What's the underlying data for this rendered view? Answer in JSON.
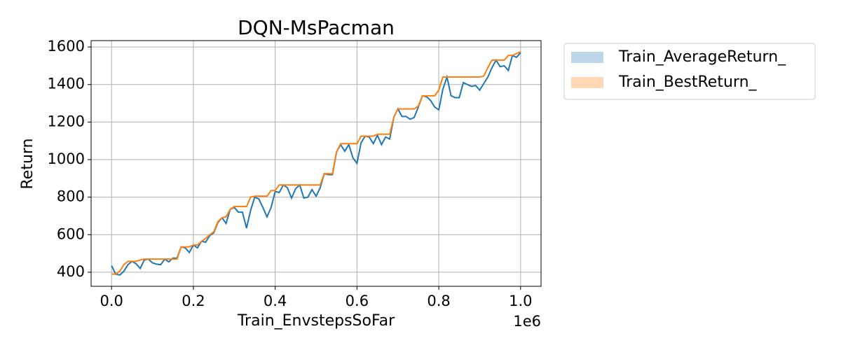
{
  "chart_data": {
    "type": "line",
    "title": "DQN-MsPacman",
    "x_label": "Train_EnvstepsSoFar",
    "y_label": "Return",
    "x_offset_label": "1e6",
    "x": [
      0,
      10000,
      20000,
      30000,
      40000,
      50000,
      60000,
      70000,
      80000,
      90000,
      100000,
      110000,
      120000,
      130000,
      140000,
      150000,
      160000,
      170000,
      180000,
      190000,
      200000,
      210000,
      220000,
      230000,
      240000,
      250000,
      260000,
      270000,
      280000,
      290000,
      300000,
      310000,
      320000,
      330000,
      340000,
      350000,
      360000,
      370000,
      380000,
      390000,
      400000,
      410000,
      420000,
      430000,
      440000,
      450000,
      460000,
      470000,
      480000,
      490000,
      500000,
      510000,
      520000,
      530000,
      540000,
      550000,
      560000,
      570000,
      580000,
      590000,
      600000,
      610000,
      620000,
      630000,
      640000,
      650000,
      660000,
      670000,
      680000,
      690000,
      700000,
      710000,
      720000,
      730000,
      740000,
      750000,
      760000,
      770000,
      780000,
      790000,
      800000,
      810000,
      820000,
      830000,
      840000,
      850000,
      860000,
      870000,
      880000,
      890000,
      900000,
      910000,
      920000,
      930000,
      940000,
      950000,
      960000,
      970000,
      980000,
      990000,
      1000000
    ],
    "series": [
      {
        "name": "Train_AverageReturn_",
        "color": "#1f77b4",
        "values": [
          435,
          390,
          385,
          405,
          440,
          458,
          445,
          420,
          465,
          470,
          450,
          443,
          440,
          470,
          455,
          475,
          475,
          535,
          530,
          505,
          545,
          530,
          565,
          560,
          595,
          610,
          665,
          690,
          660,
          735,
          745,
          720,
          720,
          635,
          730,
          800,
          790,
          745,
          695,
          745,
          830,
          825,
          865,
          850,
          795,
          845,
          865,
          795,
          800,
          840,
          805,
          850,
          925,
          920,
          920,
          1040,
          1080,
          1045,
          1080,
          1010,
          980,
          1090,
          1125,
          1120,
          1085,
          1130,
          1080,
          1120,
          1110,
          1225,
          1270,
          1230,
          1230,
          1215,
          1225,
          1280,
          1340,
          1335,
          1315,
          1280,
          1265,
          1375,
          1440,
          1340,
          1330,
          1330,
          1410,
          1400,
          1390,
          1395,
          1370,
          1405,
          1440,
          1490,
          1530,
          1495,
          1500,
          1475,
          1555,
          1545,
          1570
        ]
      },
      {
        "name": "Train_BestReturn_",
        "color": "#ff7f0e",
        "values": [
          390,
          390,
          405,
          440,
          458,
          458,
          458,
          465,
          470,
          470,
          470,
          470,
          470,
          470,
          470,
          470,
          470,
          535,
          535,
          535,
          545,
          545,
          565,
          580,
          600,
          615,
          670,
          690,
          695,
          735,
          750,
          750,
          750,
          750,
          800,
          805,
          805,
          805,
          805,
          835,
          835,
          865,
          865,
          865,
          865,
          865,
          865,
          865,
          865,
          865,
          865,
          865,
          925,
          925,
          925,
          1040,
          1085,
          1085,
          1085,
          1085,
          1085,
          1125,
          1125,
          1125,
          1125,
          1135,
          1135,
          1135,
          1135,
          1225,
          1270,
          1270,
          1270,
          1270,
          1270,
          1285,
          1340,
          1340,
          1340,
          1340,
          1370,
          1440,
          1440,
          1440,
          1440,
          1440,
          1440,
          1440,
          1440,
          1440,
          1440,
          1445,
          1490,
          1530,
          1530,
          1530,
          1530,
          1555,
          1555,
          1565,
          1575
        ]
      }
    ],
    "xlim": [
      -50000,
      1050000
    ],
    "ylim": [
      325,
      1634
    ],
    "xticks": [
      {
        "value": 0,
        "label": "0.0"
      },
      {
        "value": 200000,
        "label": "0.2"
      },
      {
        "value": 400000,
        "label": "0.4"
      },
      {
        "value": 600000,
        "label": "0.6"
      },
      {
        "value": 800000,
        "label": "0.8"
      },
      {
        "value": 1000000,
        "label": "1.0"
      }
    ],
    "yticks": [
      400,
      600,
      800,
      1000,
      1200,
      1400,
      1600
    ],
    "grid": true,
    "legend": "outside-right"
  }
}
